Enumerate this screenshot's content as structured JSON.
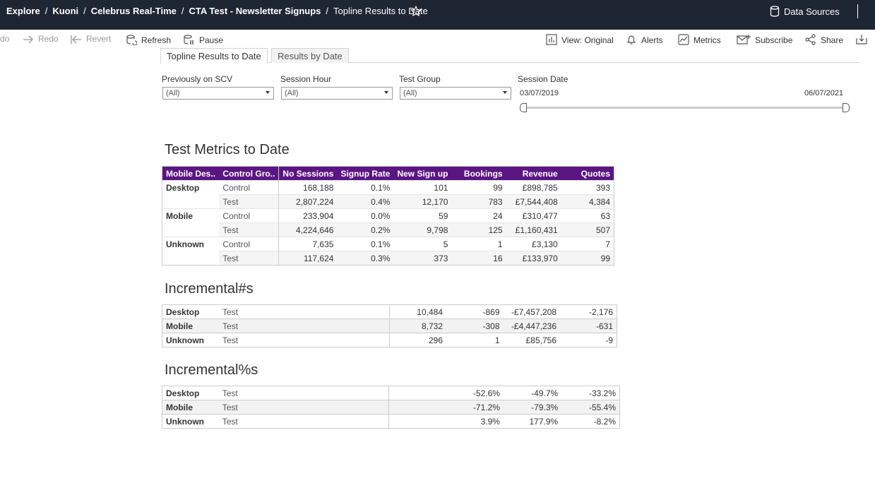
{
  "breadcrumb": [
    "Explore",
    "Kuoni",
    "Celebrus Real-Time",
    "CTA Test - Newsletter Signups",
    "Topline Results to Date"
  ],
  "header": {
    "data_sources": "Data Sources"
  },
  "toolbar": {
    "undo": "do",
    "redo": "Redo",
    "revert": "Revert",
    "refresh": "Refresh",
    "pause": "Pause",
    "view": "View: Original",
    "alerts": "Alerts",
    "metrics": "Metrics",
    "subscribe": "Subscribe",
    "share": "Share"
  },
  "tabs": [
    "Topline Results to Date",
    "Results by Date"
  ],
  "filters": {
    "previously_label": "Previously on SCV",
    "previously_value": "(All)",
    "hour_label": "Session Hour",
    "hour_value": "(All)",
    "group_label": "Test Group",
    "group_value": "(All)",
    "date_label": "Session Date",
    "date_start": "03/07/2019",
    "date_end": "06/07/2021"
  },
  "metrics": {
    "title": "Test Metrics to Date",
    "headers": [
      "Mobile Des..",
      "Control Gro..",
      "No Sessions",
      "Signup Rate",
      "New Sign up",
      "Bookings",
      "Revenue",
      "Quotes"
    ],
    "rows": [
      {
        "device": "Desktop",
        "group": "Control",
        "sessions": "168,188",
        "rate": "0.1%",
        "signups": "101",
        "bookings": "99",
        "revenue": "£898,785",
        "quotes": "393"
      },
      {
        "device": "",
        "group": "Test",
        "sessions": "2,807,224",
        "rate": "0.4%",
        "signups": "12,170",
        "bookings": "783",
        "revenue": "£7,544,408",
        "quotes": "4,384"
      },
      {
        "device": "Mobile",
        "group": "Control",
        "sessions": "233,904",
        "rate": "0.0%",
        "signups": "59",
        "bookings": "24",
        "revenue": "£310,477",
        "quotes": "63"
      },
      {
        "device": "",
        "group": "Test",
        "sessions": "4,224,646",
        "rate": "0.2%",
        "signups": "9,798",
        "bookings": "125",
        "revenue": "£1,160,431",
        "quotes": "507"
      },
      {
        "device": "Unknown",
        "group": "Control",
        "sessions": "7,635",
        "rate": "0.1%",
        "signups": "5",
        "bookings": "1",
        "revenue": "£3,130",
        "quotes": "7"
      },
      {
        "device": "",
        "group": "Test",
        "sessions": "117,624",
        "rate": "0.3%",
        "signups": "373",
        "bookings": "16",
        "revenue": "£133,970",
        "quotes": "99"
      }
    ]
  },
  "incremental_n": {
    "title": "Incremental#s",
    "rows": [
      {
        "device": "Desktop",
        "group": "Test",
        "signups": "10,484",
        "bookings": "-869",
        "revenue": "-£7,457,208",
        "quotes": "-2,176"
      },
      {
        "device": "Mobile",
        "group": "Test",
        "signups": "8,732",
        "bookings": "-308",
        "revenue": "-£4,447,236",
        "quotes": "-631"
      },
      {
        "device": "Unknown",
        "group": "Test",
        "signups": "296",
        "bookings": "1",
        "revenue": "£85,756",
        "quotes": "-9"
      }
    ]
  },
  "incremental_p": {
    "title": "Incremental%s",
    "rows": [
      {
        "device": "Desktop",
        "group": "Test",
        "bookings": "-52.6%",
        "revenue": "-49.7%",
        "quotes": "-33.2%"
      },
      {
        "device": "Mobile",
        "group": "Test",
        "bookings": "-71.2%",
        "revenue": "-79.3%",
        "quotes": "-55.4%"
      },
      {
        "device": "Unknown",
        "group": "Test",
        "bookings": "3.9%",
        "revenue": "177.9%",
        "quotes": "-8.2%"
      }
    ]
  }
}
